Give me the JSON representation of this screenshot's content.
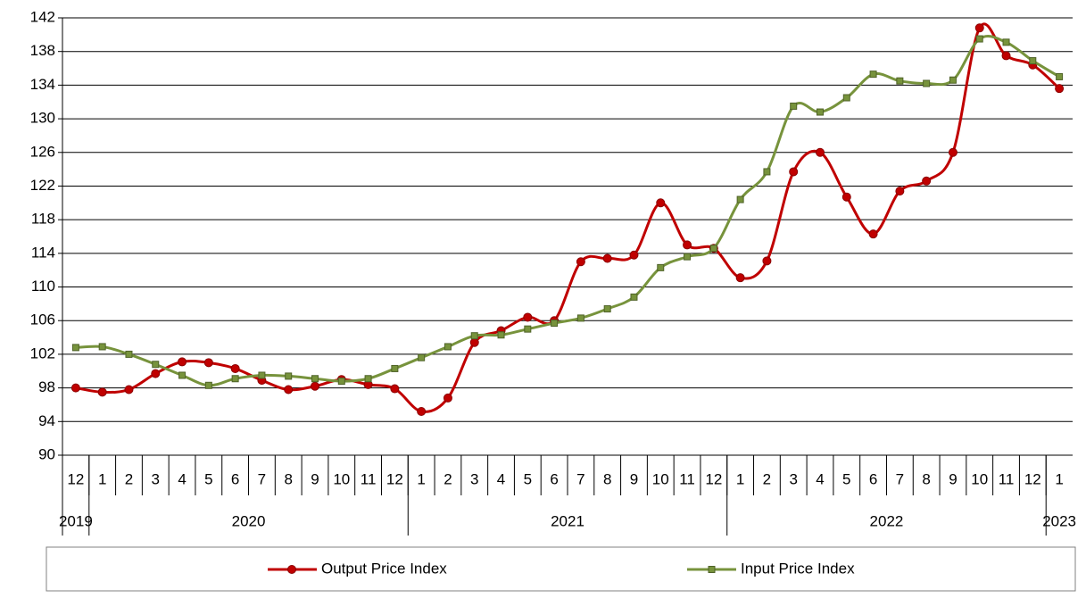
{
  "chart_data": {
    "type": "line",
    "categories": [
      "12",
      "1",
      "2",
      "3",
      "4",
      "5",
      "6",
      "7",
      "8",
      "9",
      "10",
      "11",
      "12",
      "1",
      "2",
      "3",
      "4",
      "5",
      "6",
      "7",
      "8",
      "9",
      "10",
      "11",
      "12",
      "1",
      "2",
      "3",
      "4",
      "5",
      "6",
      "7",
      "8",
      "9",
      "10",
      "11",
      "12",
      "1"
    ],
    "years": [
      "2019",
      "2020",
      "2021",
      "2022",
      "2023"
    ],
    "series": [
      {
        "name": "Output Price Index",
        "color": "#c00000",
        "marker": "circle",
        "values": [
          98.0,
          97.5,
          97.8,
          99.7,
          101.1,
          101.0,
          100.3,
          98.9,
          97.8,
          98.2,
          99.0,
          98.4,
          97.9,
          95.2,
          96.8,
          103.4,
          104.8,
          106.4,
          106.0,
          113.0,
          113.4,
          113.8,
          120.0,
          115.0,
          114.6,
          111.1,
          113.1,
          123.7,
          126.0,
          120.7,
          116.3,
          121.4,
          122.6,
          126.0,
          140.8,
          137.5,
          136.4,
          133.6
        ]
      },
      {
        "name": "Input Price Index",
        "color": "#77933c",
        "marker": "square",
        "values": [
          102.8,
          102.9,
          102.0,
          100.8,
          99.5,
          98.3,
          99.1,
          99.5,
          99.4,
          99.1,
          98.8,
          99.1,
          100.3,
          101.6,
          102.9,
          104.2,
          104.3,
          105.0,
          105.7,
          106.3,
          107.4,
          108.8,
          112.3,
          113.6,
          114.6,
          120.4,
          123.7,
          131.5,
          130.8,
          132.5,
          135.3,
          134.5,
          134.2,
          134.6,
          139.5,
          139.1,
          136.9,
          135.0
        ]
      }
    ],
    "ylim": [
      90,
      142
    ],
    "yticks": [
      90,
      94,
      98,
      102,
      106,
      110,
      114,
      118,
      122,
      126,
      130,
      134,
      138,
      142
    ],
    "grid": true,
    "legend": "bottom"
  }
}
